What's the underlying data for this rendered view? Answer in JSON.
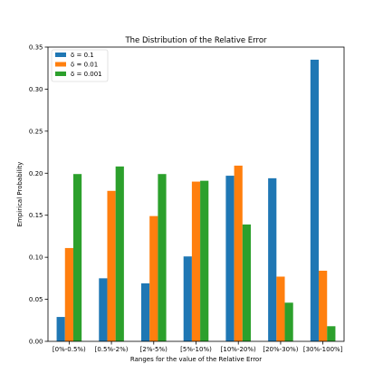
{
  "chart_data": {
    "type": "bar",
    "title": "The Distribution of the Relative Error",
    "xlabel": "Ranges for the value of the Relative Error",
    "ylabel": "Empirical Probability",
    "categories": [
      "[0%-0.5%)",
      "[0.5%-2%)",
      "[2%-5%)",
      "[5%-10%)",
      "[10%-20%)",
      "[20%-30%)",
      "[30%-100%]"
    ],
    "series": [
      {
        "name": "δ = 0.1",
        "color": "#1f77b4",
        "values": [
          0.029,
          0.075,
          0.069,
          0.101,
          0.197,
          0.194,
          0.335
        ]
      },
      {
        "name": "δ = 0.01",
        "color": "#ff7f0e",
        "values": [
          0.111,
          0.179,
          0.149,
          0.19,
          0.209,
          0.077,
          0.084
        ]
      },
      {
        "name": "δ = 0.001",
        "color": "#2ca02c",
        "values": [
          0.199,
          0.208,
          0.199,
          0.191,
          0.139,
          0.046,
          0.018
        ]
      }
    ],
    "ylim": [
      0,
      0.35
    ],
    "yticks": [
      0.0,
      0.05,
      0.1,
      0.15,
      0.2,
      0.25,
      0.3,
      0.35
    ],
    "ytick_labels": [
      "0.00",
      "0.05",
      "0.10",
      "0.15",
      "0.20",
      "0.25",
      "0.30",
      "0.35"
    ],
    "legend_position": "top-left",
    "grid": false
  }
}
